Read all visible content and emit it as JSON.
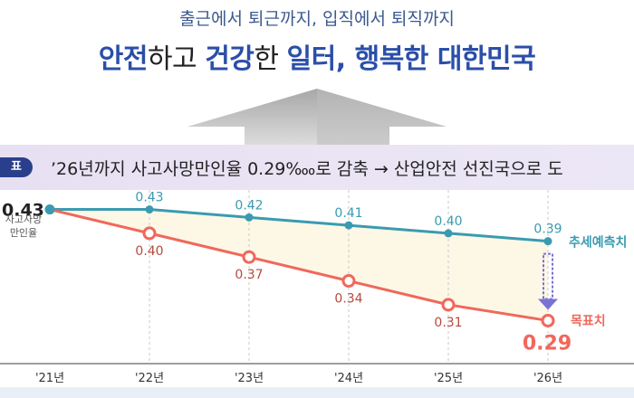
{
  "header": {
    "subtitle": "출근에서 퇴근까지, 입직에서 퇴직까지",
    "title_parts": [
      {
        "text": "안전",
        "style": "blue"
      },
      {
        "text": "하고 ",
        "style": "light"
      },
      {
        "text": "건강",
        "style": "blue"
      },
      {
        "text": "한 ",
        "style": "light"
      },
      {
        "text": "일터, 행복한 대한민국",
        "style": "blue"
      }
    ]
  },
  "banner": {
    "tag": "표",
    "text": "’26년까지 사고사망만인율 0.29‱로 감축 → 산업안전 선진국으로 도"
  },
  "chart_data": {
    "type": "line",
    "categories": [
      "'21년",
      "'22년",
      "'23년",
      "'24년",
      "'25년",
      "'26년"
    ],
    "series": [
      {
        "name": "추세예측치",
        "values": [
          0.43,
          0.43,
          0.42,
          0.41,
          0.4,
          0.39
        ],
        "color": "#3a9bb0"
      },
      {
        "name": "목표치",
        "values": [
          0.43,
          0.4,
          0.37,
          0.34,
          0.31,
          0.29
        ],
        "color": "#f0685c"
      }
    ],
    "start_value_label": "0.43",
    "start_label": "사고사망\n만인율",
    "final_target_label": "0.29",
    "ylim": [
      0.27,
      0.45
    ],
    "fill_color": "#fdf7e6",
    "arrow_color": "#7a72d4"
  }
}
